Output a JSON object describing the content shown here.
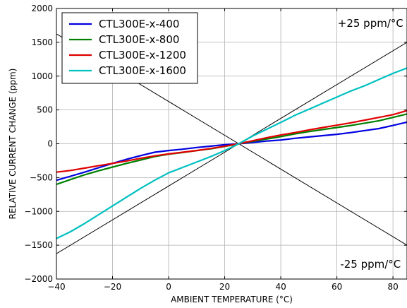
{
  "chart_data": {
    "type": "line",
    "title": "",
    "xlabel": "AMBIENT TEMPERATURE (°C)",
    "ylabel": "RELATIVE CURRENT CHANGE (ppm)",
    "xlim": [
      -40,
      85
    ],
    "ylim": [
      -2000,
      2000
    ],
    "x_ticks": [
      -40,
      -20,
      0,
      20,
      40,
      60,
      80
    ],
    "y_ticks": [
      -2000,
      -1500,
      -1000,
      -500,
      0,
      500,
      1000,
      1500,
      2000
    ],
    "x_tick_labels": [
      "−40",
      "−20",
      "0",
      "20",
      "40",
      "60",
      "80"
    ],
    "y_tick_labels": [
      "−2000",
      "−1500",
      "−1000",
      "−500",
      "0",
      "500",
      "1000",
      "1500",
      "2000"
    ],
    "grid": true,
    "legend_position": "top-left",
    "x": [
      -40,
      -35,
      -30,
      -25,
      -20,
      -15,
      -10,
      -5,
      0,
      5,
      10,
      15,
      20,
      25,
      30,
      35,
      40,
      45,
      50,
      55,
      60,
      65,
      70,
      75,
      80,
      85
    ],
    "series": [
      {
        "name": "CTL300E-x-400",
        "color": "#0000e0",
        "values": [
          -540,
          -480,
          -420,
          -355,
          -290,
          -230,
          -175,
          -125,
          -100,
          -80,
          -55,
          -35,
          -15,
          0,
          20,
          40,
          55,
          80,
          100,
          120,
          140,
          165,
          195,
          225,
          270,
          320
        ]
      },
      {
        "name": "CTL300E-x-800",
        "color": "#008000",
        "values": [
          -600,
          -530,
          -460,
          -400,
          -345,
          -290,
          -240,
          -190,
          -155,
          -130,
          -100,
          -75,
          -40,
          0,
          35,
          70,
          105,
          145,
          180,
          210,
          240,
          270,
          305,
          340,
          390,
          440
        ]
      },
      {
        "name": "CTL300E-x-1200",
        "color": "#e00000",
        "values": [
          -420,
          -395,
          -360,
          -325,
          -290,
          -255,
          -215,
          -180,
          -150,
          -125,
          -100,
          -70,
          -35,
          0,
          45,
          90,
          130,
          165,
          205,
          240,
          275,
          310,
          350,
          390,
          430,
          490
        ]
      },
      {
        "name": "CTL300E-x-1600",
        "color": "#00c0c0",
        "values": [
          -1400,
          -1300,
          -1180,
          -1050,
          -920,
          -790,
          -660,
          -540,
          -430,
          -350,
          -270,
          -190,
          -100,
          0,
          115,
          215,
          315,
          420,
          510,
          600,
          690,
          780,
          860,
          950,
          1040,
          1120
        ]
      }
    ],
    "reference_lines": [
      {
        "name": "+25 ppm/°C",
        "points": [
          [
            -40,
            -1625
          ],
          [
            85,
            1500
          ]
        ],
        "color": "#000000"
      },
      {
        "name": "-25 ppm/°C",
        "points": [
          [
            -40,
            1625
          ],
          [
            85,
            -1500
          ]
        ],
        "color": "#000000"
      }
    ],
    "annotations": [
      {
        "text": "+25 ppm/°C",
        "x": 72,
        "y": 1780
      },
      {
        "text": "-25 ppm/°C",
        "x": 72,
        "y": -1780
      }
    ]
  }
}
